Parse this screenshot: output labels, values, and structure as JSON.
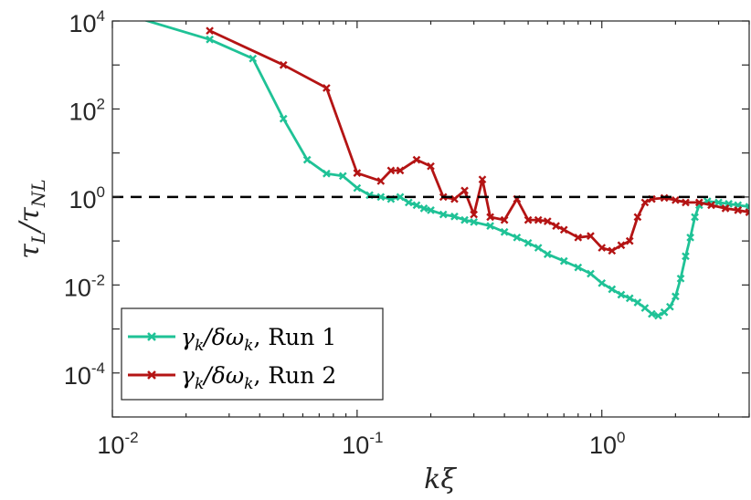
{
  "chart_data": {
    "type": "line",
    "xscale": "log",
    "yscale": "log",
    "xlim": [
      0.01,
      4
    ],
    "ylim": [
      1e-05,
      10000
    ],
    "xlabel": {
      "base": "k",
      "tail": "ξ"
    },
    "ylabel": {
      "num": "τ",
      "num_sub": "L",
      "den": "τ",
      "den_sub": "NL"
    },
    "xticks": [
      {
        "value": 0.01,
        "base": "10",
        "exp": "-2"
      },
      {
        "value": 0.1,
        "base": "10",
        "exp": "-1"
      },
      {
        "value": 1,
        "base": "10",
        "exp": "0"
      }
    ],
    "yticks": [
      {
        "value": 10000,
        "base": "10",
        "exp": "4"
      },
      {
        "value": 100,
        "base": "10",
        "exp": "2"
      },
      {
        "value": 1,
        "base": "10",
        "exp": "0"
      },
      {
        "value": 0.01,
        "base": "10",
        "exp": "-2"
      },
      {
        "value": 0.0001,
        "base": "10",
        "exp": "-4"
      }
    ],
    "reference_line": {
      "y": 1,
      "style": "dashed",
      "color": "#000000"
    },
    "legend": {
      "location": "bottom-left"
    },
    "series": [
      {
        "name_main": "γ",
        "name_sub1": "k",
        "name_mid": "/δω",
        "name_sub2": "k",
        "name_tail": ", Run 1",
        "color": "#1fc296",
        "marker": "x",
        "x": [
          0.0125,
          0.025,
          0.0375,
          0.05,
          0.0625,
          0.075,
          0.0875,
          0.1,
          0.1125,
          0.125,
          0.1375,
          0.15,
          0.1625,
          0.175,
          0.1875,
          0.2,
          0.225,
          0.25,
          0.275,
          0.3,
          0.35,
          0.4,
          0.45,
          0.5,
          0.55,
          0.6,
          0.7,
          0.8,
          0.9,
          1.0,
          1.1,
          1.2,
          1.3,
          1.4,
          1.5,
          1.6,
          1.7,
          1.8,
          1.9,
          2.0,
          2.1,
          2.2,
          2.3,
          2.4,
          2.5,
          2.7,
          3.0,
          3.3,
          3.6,
          4.0
        ],
        "y": [
          12000,
          3800,
          1400,
          60,
          7,
          3.4,
          3,
          1.6,
          1.1,
          1.0,
          0.9,
          1.0,
          0.75,
          0.65,
          0.55,
          0.5,
          0.4,
          0.36,
          0.3,
          0.27,
          0.22,
          0.16,
          0.12,
          0.09,
          0.07,
          0.05,
          0.035,
          0.025,
          0.018,
          0.011,
          0.008,
          0.006,
          0.005,
          0.004,
          0.003,
          0.0022,
          0.002,
          0.0024,
          0.0032,
          0.0055,
          0.014,
          0.045,
          0.12,
          0.35,
          0.65,
          0.8,
          0.75,
          0.7,
          0.65,
          0.6
        ]
      },
      {
        "name_main": "γ",
        "name_sub1": "k",
        "name_mid": "/δω",
        "name_sub2": "k",
        "name_tail": ", Run 2",
        "color": "#b41414",
        "marker": "x",
        "x": [
          0.025,
          0.05,
          0.075,
          0.1,
          0.125,
          0.1375,
          0.15,
          0.175,
          0.2,
          0.225,
          0.25,
          0.275,
          0.3,
          0.325,
          0.35,
          0.4,
          0.45,
          0.5,
          0.55,
          0.6,
          0.65,
          0.7,
          0.8,
          0.9,
          1.0,
          1.1,
          1.2,
          1.3,
          1.4,
          1.5,
          1.6,
          1.8,
          2.0,
          2.2,
          2.5,
          2.8,
          3.2,
          3.6,
          4.0
        ],
        "y": [
          6000,
          1000,
          300,
          3.5,
          2.3,
          4,
          4,
          7,
          5,
          1.0,
          0.9,
          1.4,
          0.4,
          2.5,
          0.35,
          0.3,
          0.9,
          0.3,
          0.3,
          0.28,
          0.22,
          0.18,
          0.12,
          0.13,
          0.07,
          0.06,
          0.08,
          0.1,
          0.35,
          0.75,
          0.9,
          0.95,
          0.85,
          0.75,
          0.75,
          0.65,
          0.55,
          0.5,
          0.45
        ]
      }
    ]
  }
}
